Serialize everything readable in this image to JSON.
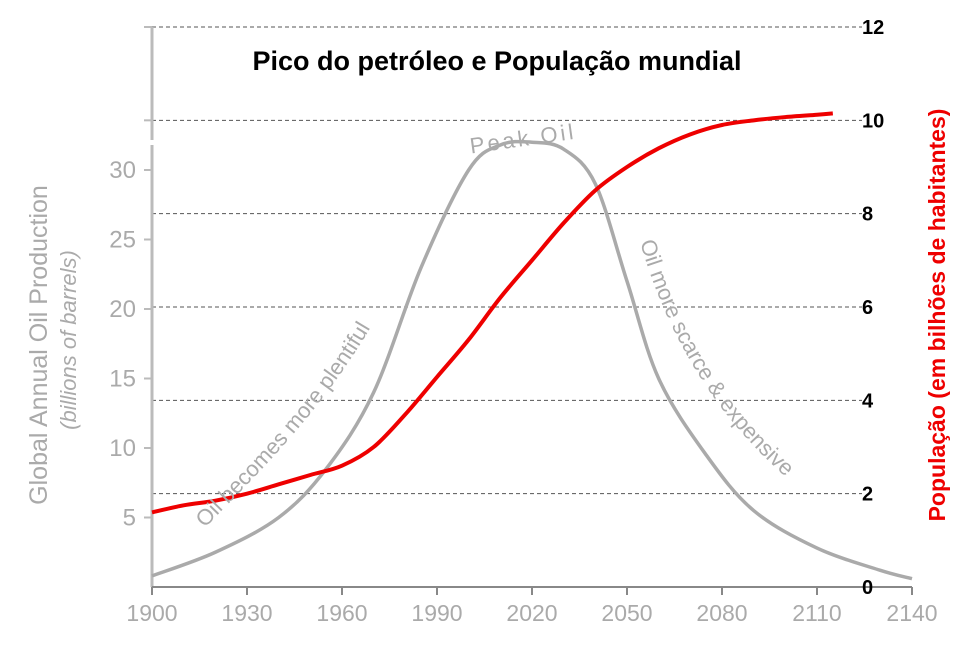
{
  "chart_data": {
    "type": "line",
    "title": "Pico do petróleo e População mundial",
    "xlabel": "",
    "x_ticks": [
      "1900",
      "1930",
      "1960",
      "1990",
      "2020",
      "2050",
      "2080",
      "2110",
      "2140"
    ],
    "xlim": [
      1900,
      2140
    ],
    "left_axis": {
      "label": "Global Annual Oil Production",
      "sublabel": "(billions of barrels)",
      "ylim": [
        0,
        34
      ],
      "ticks": [
        "5",
        "10",
        "15",
        "20",
        "25",
        "30"
      ]
    },
    "right_axis": {
      "label": "População (em bilhões de habitantes)",
      "ylim": [
        0,
        12
      ],
      "ticks": [
        "0",
        "2",
        "4",
        "6",
        "8",
        "10",
        "12"
      ]
    },
    "grid": "dashed horizontal at right-axis ticks",
    "annotations": {
      "peak": "Peak Oil",
      "rising": "Oil becomes more plentiful",
      "falling": "Oil more scarce & expensive"
    },
    "series": [
      {
        "axis": "left",
        "color": "#aaaaaa",
        "x": [
          1900,
          1920,
          1940,
          1955,
          1970,
          1985,
          2000,
          2010,
          2020,
          2030,
          2040,
          2050,
          2060,
          2075,
          2090,
          2110,
          2130,
          2140
        ],
        "y": [
          0.8,
          2.5,
          5,
          8.5,
          14,
          23,
          30,
          31.8,
          32,
          31.5,
          29,
          22,
          15,
          9.5,
          5.5,
          2.8,
          1.2,
          0.6
        ]
      },
      {
        "axis": "right",
        "color": "#ee0000",
        "x": [
          1900,
          1910,
          1920,
          1930,
          1940,
          1950,
          1960,
          1970,
          1980,
          1990,
          2000,
          2010,
          2020,
          2030,
          2040,
          2050,
          2060,
          2070,
          2080,
          2090,
          2100,
          2110,
          2115
        ],
        "y": [
          1.6,
          1.75,
          1.85,
          2.0,
          2.2,
          2.4,
          2.6,
          3.0,
          3.7,
          4.5,
          5.3,
          6.2,
          7.0,
          7.8,
          8.5,
          9.0,
          9.4,
          9.7,
          9.9,
          10.0,
          10.07,
          10.12,
          10.15
        ]
      }
    ]
  }
}
